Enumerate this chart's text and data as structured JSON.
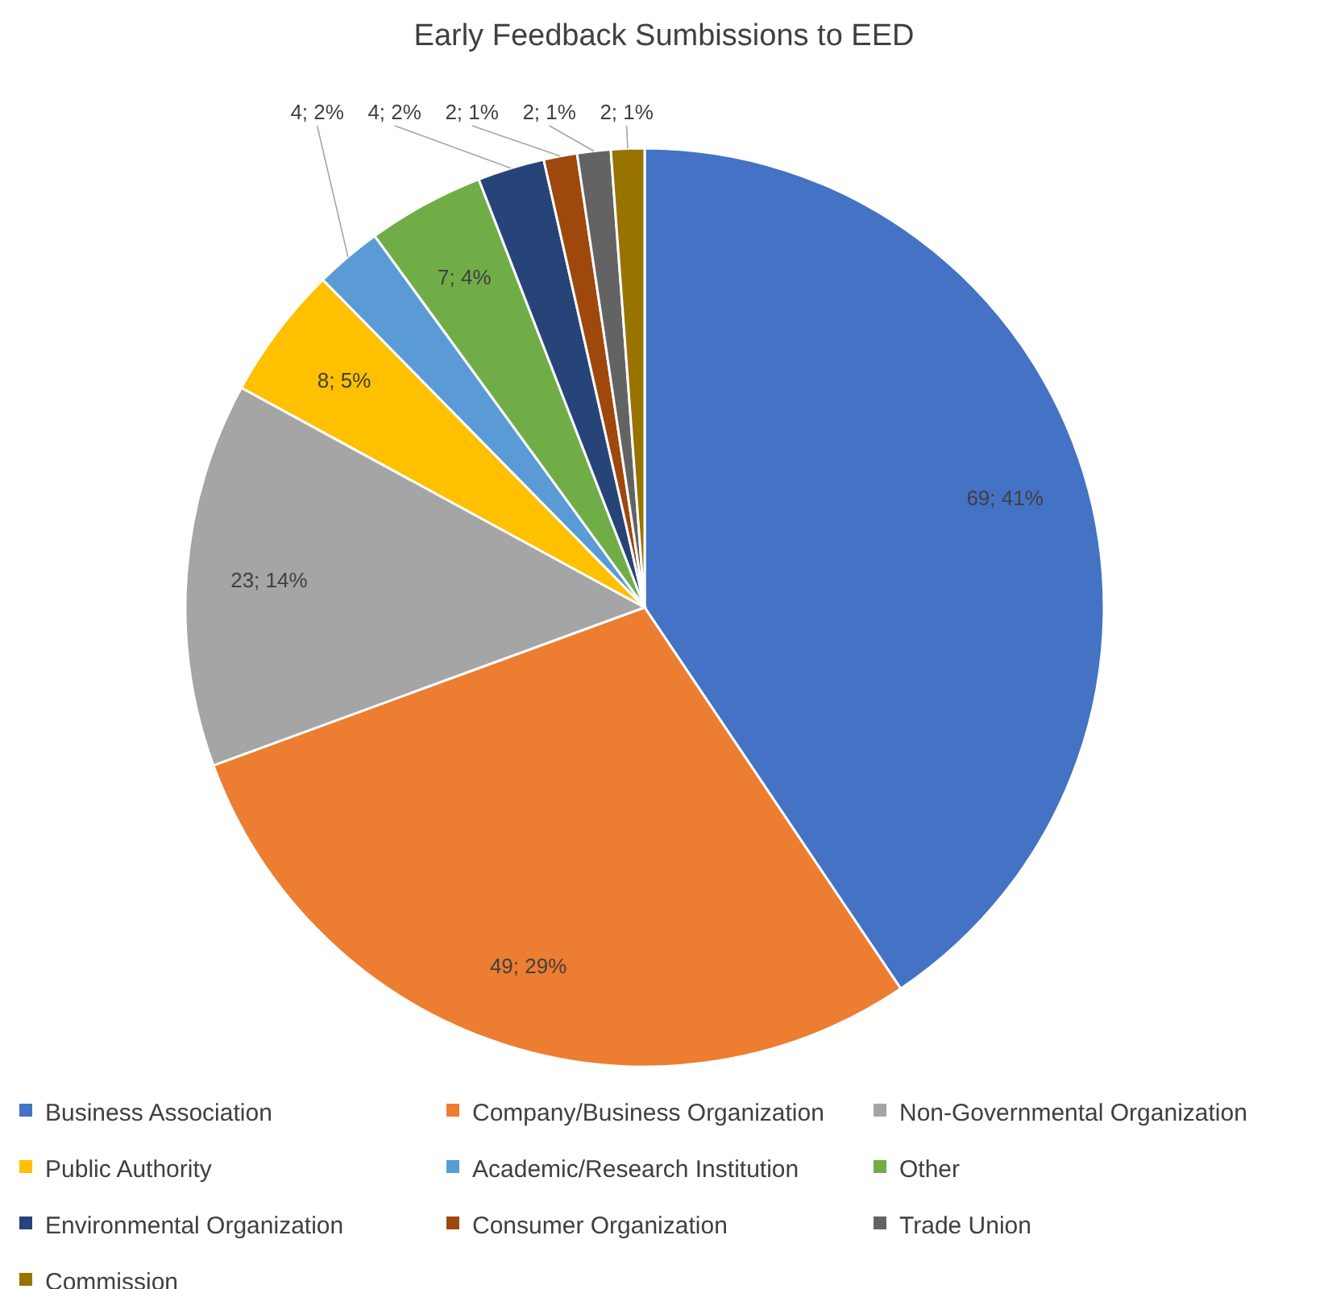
{
  "chart_data": {
    "type": "pie",
    "title": "Early Feedback Sumbissions to EED",
    "categories": [
      "Business Association",
      "Company/Business Organization",
      "Non-Governmental Organization",
      "Public Authority",
      "Academic/Research Institution",
      "Other",
      "Environmental Organization",
      "Consumer Organization",
      "Trade Union",
      "Commission"
    ],
    "values": [
      69,
      49,
      23,
      8,
      4,
      7,
      4,
      2,
      2,
      2
    ],
    "colors": [
      "#4472c4",
      "#ed7d31",
      "#a5a5a5",
      "#ffc000",
      "#5b9bd5",
      "#70ad47",
      "#264478",
      "#9e480e",
      "#636363",
      "#997300"
    ],
    "value_labels": [
      "69; 41%",
      "49; 29%",
      "23; 14%",
      "8; 5%",
      "4; 2%",
      "7; 4%",
      "4; 2%",
      "2; 1%",
      "2; 1%",
      "2; 1%"
    ],
    "legend": "bottom"
  }
}
